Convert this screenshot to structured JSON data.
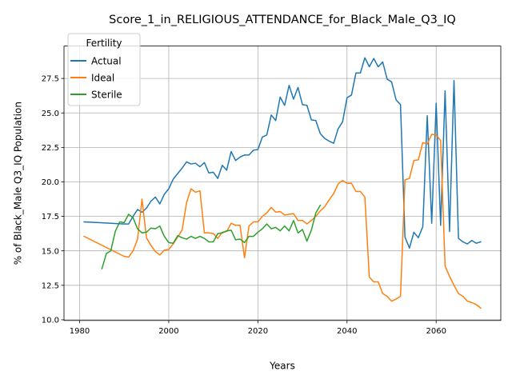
{
  "chart_data": {
    "type": "line",
    "title": "Score_1_in_RELIGIOUS_ATTENDANCE_for_Black_Male_Q3_IQ",
    "xlabel": "Years",
    "ylabel": "% of Black_Male Q3_IQ Population",
    "xlim": [
      1976.5,
      2074.5
    ],
    "ylim": [
      9.95,
      29.85
    ],
    "x_ticks": [
      1980,
      2000,
      2020,
      2040,
      2060
    ],
    "x_tick_labels": [
      "1980",
      "2000",
      "2020",
      "2040",
      "2060"
    ],
    "y_ticks": [
      10.0,
      12.5,
      15.0,
      17.5,
      20.0,
      22.5,
      25.0,
      27.5
    ],
    "y_tick_labels": [
      "10.0",
      "12.5",
      "15.0",
      "17.5",
      "20.0",
      "22.5",
      "25.0",
      "27.5"
    ],
    "grid": true,
    "legend": {
      "title": "Fertility",
      "position": "upper-left"
    },
    "series": [
      {
        "name": "Actual",
        "color": "#1f77b4",
        "points": [
          [
            1981,
            17.1
          ],
          [
            1990,
            16.95
          ],
          [
            1991,
            16.95
          ],
          [
            1992,
            17.5
          ],
          [
            1993,
            18.0
          ],
          [
            1994,
            17.8
          ],
          [
            1995,
            18.1
          ],
          [
            1996,
            18.6
          ],
          [
            1997,
            18.9
          ],
          [
            1998,
            18.4
          ],
          [
            1999,
            19.1
          ],
          [
            2000,
            19.5
          ],
          [
            2001,
            20.2
          ],
          [
            2002,
            20.6
          ],
          [
            2003,
            21.0
          ],
          [
            2004,
            21.45
          ],
          [
            2005,
            21.3
          ],
          [
            2006,
            21.35
          ],
          [
            2007,
            21.1
          ],
          [
            2008,
            21.4
          ],
          [
            2009,
            20.65
          ],
          [
            2010,
            20.7
          ],
          [
            2011,
            20.25
          ],
          [
            2012,
            21.2
          ],
          [
            2013,
            20.85
          ],
          [
            2014,
            22.2
          ],
          [
            2015,
            21.55
          ],
          [
            2016,
            21.8
          ],
          [
            2017,
            21.95
          ],
          [
            2018,
            21.95
          ],
          [
            2019,
            22.3
          ],
          [
            2020,
            22.35
          ],
          [
            2021,
            23.25
          ],
          [
            2022,
            23.4
          ],
          [
            2023,
            24.85
          ],
          [
            2024,
            24.45
          ],
          [
            2025,
            26.15
          ],
          [
            2026,
            25.55
          ],
          [
            2027,
            27.0
          ],
          [
            2028,
            26.0
          ],
          [
            2029,
            26.85
          ],
          [
            2030,
            25.6
          ],
          [
            2031,
            25.55
          ],
          [
            2032,
            24.5
          ],
          [
            2033,
            24.45
          ],
          [
            2034,
            23.5
          ],
          [
            2035,
            23.15
          ],
          [
            2036,
            22.95
          ],
          [
            2037,
            22.8
          ],
          [
            2038,
            23.85
          ],
          [
            2039,
            24.35
          ],
          [
            2040,
            26.1
          ],
          [
            2041,
            26.3
          ],
          [
            2042,
            27.9
          ],
          [
            2043,
            27.9
          ],
          [
            2044,
            29.0
          ],
          [
            2045,
            28.35
          ],
          [
            2046,
            28.95
          ],
          [
            2047,
            28.35
          ],
          [
            2048,
            28.7
          ],
          [
            2049,
            27.45
          ],
          [
            2050,
            27.25
          ],
          [
            2051,
            25.95
          ],
          [
            2052,
            25.6
          ],
          [
            2053,
            16.0
          ],
          [
            2054,
            15.2
          ],
          [
            2055,
            16.35
          ],
          [
            2056,
            15.95
          ],
          [
            2057,
            16.75
          ],
          [
            2058,
            24.8
          ],
          [
            2059,
            17.0
          ],
          [
            2060,
            25.7
          ],
          [
            2061,
            16.85
          ],
          [
            2062,
            26.6
          ],
          [
            2063,
            16.4
          ],
          [
            2064,
            27.35
          ],
          [
            2065,
            15.9
          ],
          [
            2066,
            15.65
          ],
          [
            2067,
            15.5
          ],
          [
            2068,
            15.75
          ],
          [
            2069,
            15.55
          ],
          [
            2070,
            15.65
          ]
        ]
      },
      {
        "name": "Ideal",
        "color": "#ff7f0e",
        "points": [
          [
            1981,
            16.05
          ],
          [
            1990,
            14.6
          ],
          [
            1991,
            14.55
          ],
          [
            1992,
            15.0
          ],
          [
            1993,
            15.85
          ],
          [
            1994,
            18.75
          ],
          [
            1995,
            15.95
          ],
          [
            1996,
            15.4
          ],
          [
            1997,
            14.95
          ],
          [
            1998,
            14.7
          ],
          [
            1999,
            15.05
          ],
          [
            2000,
            15.1
          ],
          [
            2001,
            15.5
          ],
          [
            2002,
            16.0
          ],
          [
            2003,
            16.5
          ],
          [
            2004,
            18.5
          ],
          [
            2005,
            19.5
          ],
          [
            2006,
            19.25
          ],
          [
            2007,
            19.35
          ],
          [
            2008,
            16.3
          ],
          [
            2009,
            16.3
          ],
          [
            2010,
            16.25
          ],
          [
            2011,
            15.9
          ],
          [
            2012,
            16.35
          ],
          [
            2013,
            16.4
          ],
          [
            2014,
            17.0
          ],
          [
            2015,
            16.85
          ],
          [
            2016,
            16.85
          ],
          [
            2017,
            14.5
          ],
          [
            2018,
            16.8
          ],
          [
            2019,
            17.1
          ],
          [
            2020,
            17.1
          ],
          [
            2021,
            17.5
          ],
          [
            2022,
            17.75
          ],
          [
            2023,
            18.15
          ],
          [
            2024,
            17.8
          ],
          [
            2025,
            17.85
          ],
          [
            2026,
            17.6
          ],
          [
            2027,
            17.65
          ],
          [
            2028,
            17.7
          ],
          [
            2029,
            17.2
          ],
          [
            2030,
            17.2
          ],
          [
            2031,
            16.95
          ],
          [
            2032,
            17.2
          ],
          [
            2033,
            17.5
          ],
          [
            2034,
            17.9
          ],
          [
            2035,
            18.2
          ],
          [
            2036,
            18.7
          ],
          [
            2037,
            19.15
          ],
          [
            2038,
            19.85
          ],
          [
            2039,
            20.1
          ],
          [
            2040,
            19.9
          ],
          [
            2041,
            19.9
          ],
          [
            2042,
            19.3
          ],
          [
            2043,
            19.3
          ],
          [
            2044,
            18.9
          ],
          [
            2045,
            13.1
          ],
          [
            2046,
            12.75
          ],
          [
            2047,
            12.75
          ],
          [
            2048,
            11.9
          ],
          [
            2049,
            11.7
          ],
          [
            2050,
            11.35
          ],
          [
            2051,
            11.5
          ],
          [
            2052,
            11.7
          ],
          [
            2053,
            20.15
          ],
          [
            2054,
            20.25
          ],
          [
            2055,
            21.55
          ],
          [
            2056,
            21.6
          ],
          [
            2057,
            22.85
          ],
          [
            2058,
            22.75
          ],
          [
            2059,
            23.45
          ],
          [
            2060,
            23.4
          ],
          [
            2061,
            23.0
          ],
          [
            2062,
            13.9
          ],
          [
            2063,
            13.15
          ],
          [
            2064,
            12.5
          ],
          [
            2065,
            11.9
          ],
          [
            2066,
            11.7
          ],
          [
            2067,
            11.35
          ],
          [
            2068,
            11.25
          ],
          [
            2069,
            11.1
          ],
          [
            2070,
            10.85
          ]
        ]
      },
      {
        "name": "Sterile",
        "color": "#2ca02c",
        "points": [
          [
            1985,
            13.7
          ],
          [
            1986,
            14.8
          ],
          [
            1987,
            15.0
          ],
          [
            1988,
            16.4
          ],
          [
            1989,
            17.1
          ],
          [
            1990,
            17.05
          ],
          [
            1991,
            17.65
          ],
          [
            1992,
            17.4
          ],
          [
            1993,
            16.6
          ],
          [
            1994,
            16.3
          ],
          [
            1995,
            16.35
          ],
          [
            1996,
            16.65
          ],
          [
            1997,
            16.6
          ],
          [
            1998,
            16.8
          ],
          [
            1999,
            16.05
          ],
          [
            2000,
            15.6
          ],
          [
            2001,
            15.55
          ],
          [
            2002,
            16.1
          ],
          [
            2003,
            15.95
          ],
          [
            2004,
            15.85
          ],
          [
            2005,
            16.05
          ],
          [
            2006,
            15.9
          ],
          [
            2007,
            16.05
          ],
          [
            2008,
            15.9
          ],
          [
            2009,
            15.65
          ],
          [
            2010,
            15.65
          ],
          [
            2011,
            16.25
          ],
          [
            2012,
            16.3
          ],
          [
            2013,
            16.45
          ],
          [
            2014,
            16.5
          ],
          [
            2015,
            15.8
          ],
          [
            2016,
            15.85
          ],
          [
            2017,
            15.6
          ],
          [
            2018,
            16.05
          ],
          [
            2019,
            16.05
          ],
          [
            2020,
            16.35
          ],
          [
            2021,
            16.6
          ],
          [
            2022,
            16.95
          ],
          [
            2023,
            16.6
          ],
          [
            2024,
            16.7
          ],
          [
            2025,
            16.45
          ],
          [
            2026,
            16.8
          ],
          [
            2027,
            16.45
          ],
          [
            2028,
            17.2
          ],
          [
            2029,
            16.3
          ],
          [
            2030,
            16.55
          ],
          [
            2031,
            15.7
          ],
          [
            2032,
            16.5
          ],
          [
            2033,
            17.75
          ],
          [
            2034,
            18.3
          ]
        ]
      }
    ]
  }
}
